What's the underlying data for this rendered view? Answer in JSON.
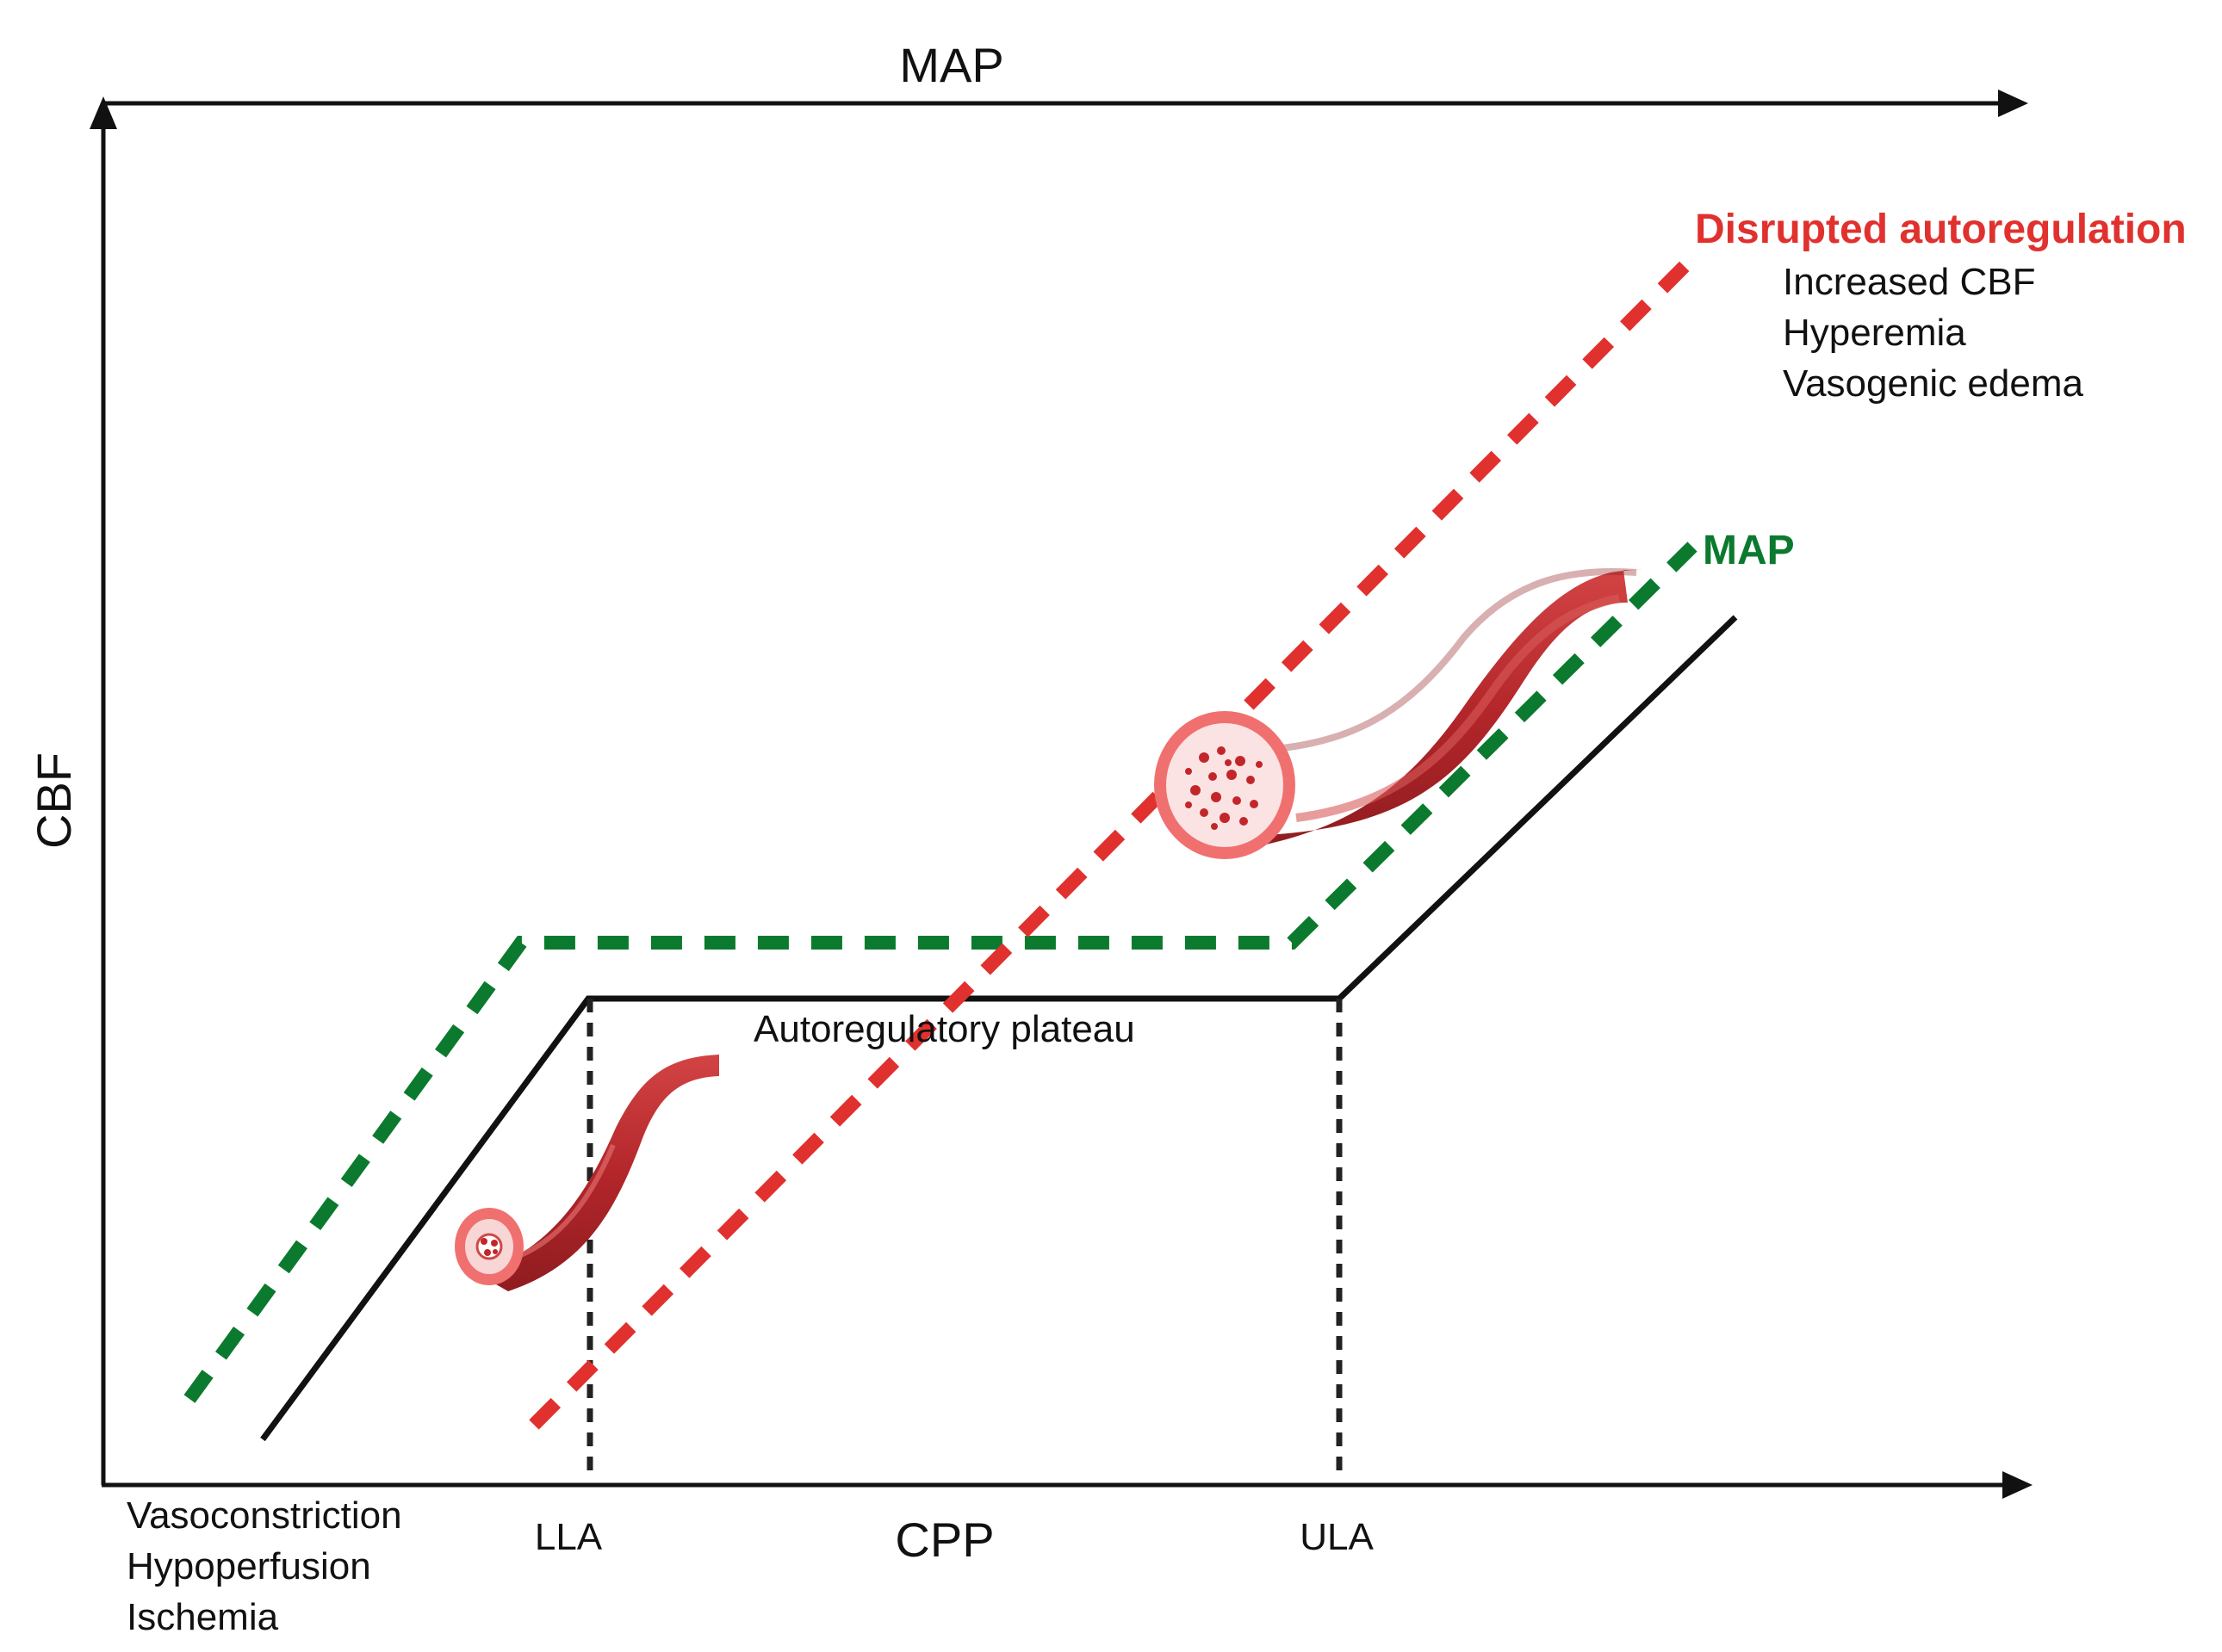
{
  "diagram": {
    "top_axis_label": "MAP",
    "bottom_axis_label": "CPP",
    "y_axis_label": "CBF",
    "llc_label": "LLA",
    "ulc_label": "ULA",
    "plateau_label": "Autoregulatory plateau",
    "low_effects": [
      "Vasoconstriction",
      "Hypoperfusion",
      "Ischemia"
    ],
    "disrupted": {
      "title": "Disrupted autoregulation",
      "effects": [
        "Increased CBF",
        "Hyperemia",
        "Vasogenic edema"
      ]
    },
    "map_curve_label": "MAP",
    "colors": {
      "normal_curve": "#111111",
      "map_curve": "#0b7a2e",
      "disrupted_curve": "#e0312e",
      "vessel": "#b3262a",
      "vessel_highlight": "#d64a4a",
      "vessel_lumen": "#f6c8c8",
      "axis": "#111111"
    }
  }
}
